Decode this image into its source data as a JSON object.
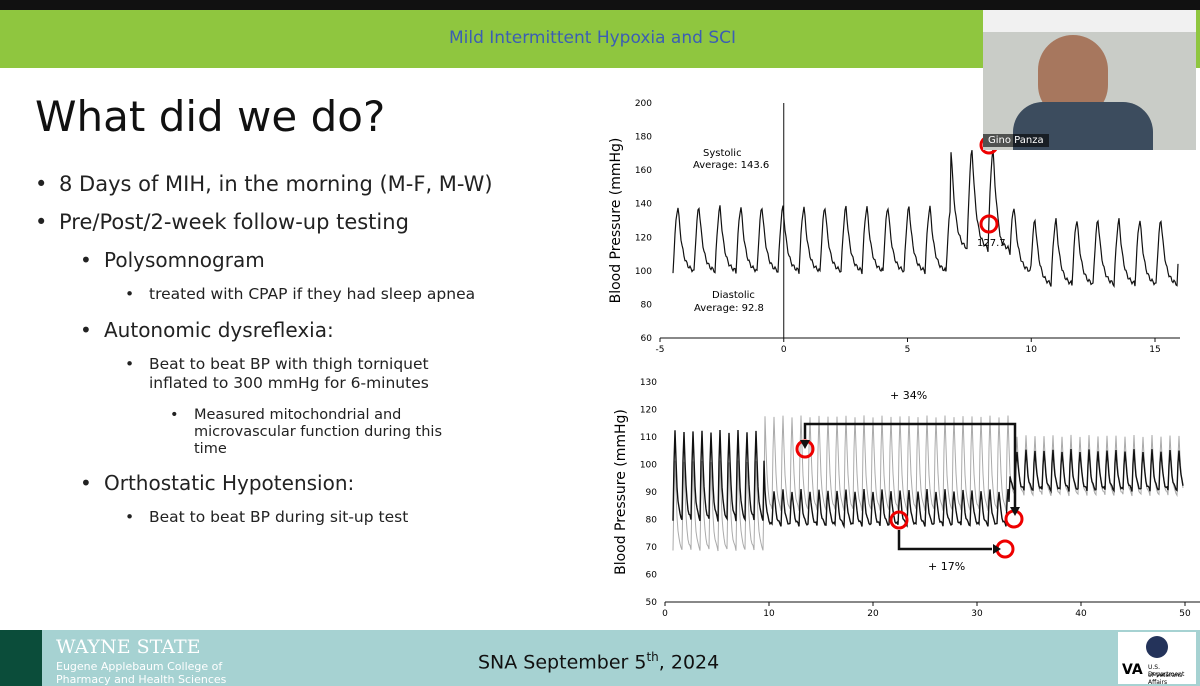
{
  "header": {
    "title": "Mild Intermittent Hypoxia and SCI"
  },
  "slide": {
    "heading": "What did we do?",
    "bullets": [
      {
        "text": "8 Days of MIH, in the morning (M-F, M-W)"
      },
      {
        "text": "Pre/Post/2-week follow-up testing",
        "children": [
          {
            "text": "Polysomnogram",
            "children": [
              {
                "text": "treated with CPAP if they had sleep apnea"
              }
            ]
          },
          {
            "text": "Autonomic dysreflexia:",
            "children": [
              {
                "text": "Beat to beat BP with thigh torniquet inflated to 300 mmHg for 6-minutes",
                "children": [
                  {
                    "text": "Measured mitochondrial and microvascular function during this time"
                  }
                ]
              }
            ]
          },
          {
            "text": "Orthostatic Hypotension:",
            "children": [
              {
                "text": "Beat to beat BP during sit-up test"
              }
            ]
          }
        ]
      }
    ]
  },
  "chart_top": {
    "ylabel": "Blood Pressure (mmHg)",
    "yticks": [
      60,
      80,
      100,
      120,
      140,
      160,
      180,
      200
    ],
    "xticks": [
      -5,
      0,
      5,
      10,
      15
    ],
    "annotations": {
      "systolic": "Systolic",
      "systolic_avg": "Average: 143.6",
      "diastolic": "Diastolic",
      "diastolic_avg": "Average: 92.8",
      "point": "127.7"
    }
  },
  "chart_bottom": {
    "ylabel": "Blood Pressure (mmHg)",
    "yticks": [
      50,
      60,
      70,
      80,
      90,
      100,
      110,
      120,
      130
    ],
    "xticks": [
      0,
      10,
      20,
      30,
      40,
      50
    ],
    "annotations": {
      "upper": "+ 34%",
      "lower": "+ 17%"
    }
  },
  "footer": {
    "institution": "WAYNE STATE",
    "college_1": "Eugene Applebaum College of",
    "college_2": "Pharmacy and Health Sciences",
    "event": "SNA September 5",
    "event_sup": "th",
    "event_end": ", 2024",
    "va": "VA",
    "va_dept_1": "U.S. Department",
    "va_dept_2": "of Veterans Affairs"
  },
  "video": {
    "name": "Gino Panza"
  }
}
